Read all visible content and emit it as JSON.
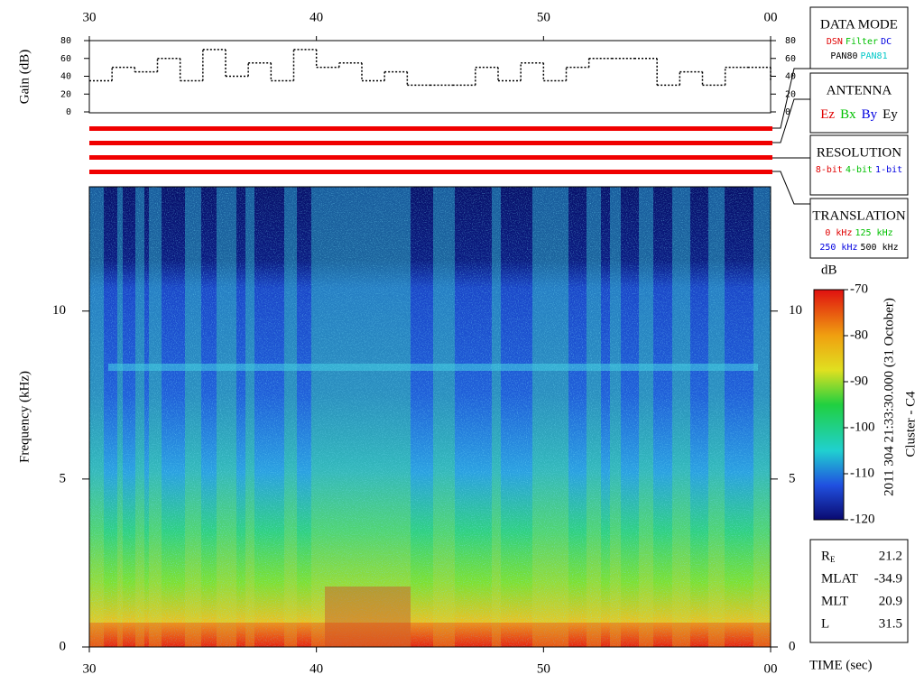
{
  "chart_data": [
    {
      "type": "line",
      "y_label": "Gain (dB)",
      "step": true,
      "color": "#000000",
      "x": [
        30,
        31,
        32,
        33,
        34,
        35,
        36,
        37,
        38,
        39,
        40,
        41,
        42,
        43,
        44,
        45,
        46,
        47,
        48,
        49,
        50,
        51,
        52,
        53,
        54,
        55,
        56,
        57,
        58,
        59,
        60
      ],
      "values": [
        35,
        50,
        45,
        60,
        35,
        70,
        40,
        55,
        35,
        70,
        50,
        55,
        35,
        45,
        30,
        30,
        30,
        50,
        35,
        55,
        35,
        50,
        60,
        60,
        60,
        30,
        45,
        30,
        50,
        50,
        35
      ],
      "xlim": [
        30,
        60
      ],
      "xticks": [
        30,
        40,
        50,
        {
          "value": 60,
          "label": "00"
        }
      ],
      "ylim": [
        0,
        80
      ],
      "yticks": [
        0,
        20,
        40,
        60,
        80
      ]
    },
    {
      "type": "spectrogram",
      "y_label": "Frequency (kHz)",
      "x_label": "TIME (sec)",
      "subtitle": "2011 304 21:33:30.000 (31 October)",
      "spacecraft": "Cluster - C4",
      "xlim": [
        30,
        60
      ],
      "xticks": [
        30,
        40,
        50,
        {
          "value": 60,
          "label": "00"
        }
      ],
      "ylim": [
        0,
        13.7
      ],
      "yticks": [
        0,
        5,
        10
      ]
    },
    {
      "type": "colorbar",
      "title": "dB",
      "ylim": [
        -120,
        -70
      ],
      "yticks": [
        -120,
        -110,
        -100,
        -90,
        -80,
        -70
      ]
    }
  ],
  "panels": {
    "data_mode": {
      "title": "DATA MODE",
      "rows": [
        [
          {
            "text": "DSN",
            "color": "#e00000"
          },
          {
            "text": "Filter",
            "color": "#00c000"
          },
          {
            "text": "DC",
            "color": "#0000e0"
          }
        ],
        [
          {
            "text": "PAN80",
            "color": "#000000"
          },
          {
            "text": "PAN81",
            "color": "#00c8c8"
          }
        ]
      ]
    },
    "antenna": {
      "title": "ANTENNA",
      "rows": [
        [
          {
            "text": "Ez",
            "color": "#e00000"
          },
          {
            "text": "Bx",
            "color": "#00c000"
          },
          {
            "text": "By",
            "color": "#0000e0"
          },
          {
            "text": "Ey",
            "color": "#000000"
          }
        ]
      ]
    },
    "resolution": {
      "title": "RESOLUTION",
      "rows": [
        [
          {
            "text": "8-bit",
            "color": "#e00000"
          },
          {
            "text": "4-bit",
            "color": "#00c000"
          },
          {
            "text": "1-bit",
            "color": "#0000e0"
          }
        ]
      ]
    },
    "translation": {
      "title": "TRANSLATION",
      "rows": [
        [
          {
            "text": "0 kHz",
            "color": "#e00000"
          },
          {
            "text": "125 kHz",
            "color": "#00c000"
          }
        ],
        [
          {
            "text": "250 kHz",
            "color": "#0000e0"
          },
          {
            "text": "500 kHz",
            "color": "#000000"
          }
        ]
      ]
    }
  },
  "orbit": [
    {
      "label": "R",
      "sub": "E",
      "value": 21.2
    },
    {
      "label": "MLAT",
      "value": -34.9
    },
    {
      "label": "MLT",
      "value": 20.9
    },
    {
      "label": "L",
      "value": 31.5
    }
  ]
}
